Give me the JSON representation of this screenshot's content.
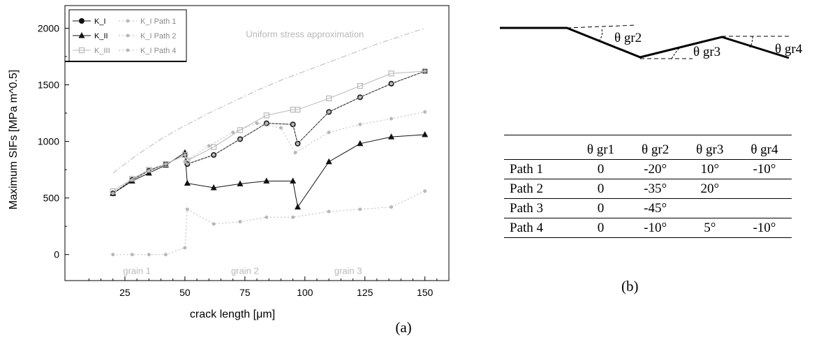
{
  "chart_data": {
    "type": "line",
    "panel_label": "(a)",
    "title": "",
    "xlabel": "crack length [μm]",
    "ylabel": "Maximum SIFs [MPa m^0.5]",
    "xlim": [
      0,
      160
    ],
    "ylim": [
      -230,
      2200
    ],
    "x_ticks": [
      25,
      50,
      75,
      100,
      125,
      150
    ],
    "y_ticks": [
      0,
      500,
      1000,
      1500,
      2000
    ],
    "legend_position": "top-left",
    "grid": false,
    "colors": {
      "dark": "#111111",
      "light": "#b8b8b8"
    },
    "series": [
      {
        "name": "K_I",
        "style": "circle",
        "shade": "dark",
        "x": [
          20,
          28,
          35,
          42,
          50,
          51,
          62,
          73,
          84,
          95,
          97,
          110,
          123,
          136,
          150
        ],
        "y": [
          540,
          660,
          740,
          800,
          880,
          800,
          880,
          1020,
          1160,
          1150,
          980,
          1260,
          1390,
          1510,
          1620
        ]
      },
      {
        "name": "K_II",
        "style": "triangle",
        "shade": "dark",
        "x": [
          20,
          28,
          35,
          42,
          50,
          51,
          62,
          73,
          84,
          95,
          97,
          110,
          123,
          136,
          150
        ],
        "y": [
          540,
          650,
          720,
          790,
          900,
          630,
          590,
          625,
          650,
          650,
          420,
          820,
          980,
          1040,
          1060
        ]
      },
      {
        "name": "K_III",
        "style": "star",
        "shade": "light",
        "x": [
          20,
          28,
          35,
          42,
          50,
          51,
          62,
          73,
          84,
          95,
          97,
          110,
          123,
          136,
          150
        ],
        "y": [
          560,
          670,
          750,
          800,
          880,
          830,
          950,
          1100,
          1230,
          1280,
          1280,
          1380,
          1490,
          1600,
          1620
        ]
      },
      {
        "name": "K_I Path 1",
        "style": "dot",
        "shade": "light",
        "x": [
          20,
          28,
          35,
          42,
          50,
          51,
          62,
          73,
          84,
          95,
          97,
          110,
          123,
          136,
          150
        ],
        "y": [
          540,
          660,
          740,
          800,
          880,
          800,
          880,
          1020,
          1160,
          1150,
          980,
          1260,
          1390,
          1510,
          1620
        ]
      },
      {
        "name": "K_I Path 2",
        "style": "dot",
        "shade": "light",
        "x": [
          50,
          60,
          70,
          80,
          90,
          96,
          110,
          123,
          136,
          150
        ],
        "y": [
          820,
          960,
          1080,
          1160,
          1120,
          900,
          1080,
          1150,
          1200,
          1260
        ]
      },
      {
        "name": "K_I Path 4",
        "style": "dot",
        "shade": "light",
        "x": [
          20,
          28,
          35,
          42,
          50,
          51,
          62,
          73,
          84,
          95,
          110,
          123,
          136,
          150
        ],
        "y": [
          0,
          0,
          0,
          0,
          60,
          400,
          270,
          290,
          330,
          330,
          380,
          400,
          420,
          560
        ]
      },
      {
        "name": "Uniform stress approximation",
        "style": "dashdot",
        "shade": "light",
        "x": [
          20,
          30,
          40,
          50,
          60,
          70,
          80,
          90,
          100,
          110,
          120,
          130,
          140,
          150
        ],
        "y": [
          720,
          880,
          1020,
          1140,
          1250,
          1350,
          1450,
          1540,
          1620,
          1700,
          1780,
          1860,
          1930,
          2000
        ]
      }
    ],
    "annotations": [
      {
        "text": "Uniform stress approximation",
        "x": 100,
        "y": 1920
      },
      {
        "text": "grain 1",
        "x": 30,
        "y": -170
      },
      {
        "text": "grain 2",
        "x": 75,
        "y": -170
      },
      {
        "text": "grain 3",
        "x": 118,
        "y": -170
      }
    ]
  },
  "panel_b": {
    "label": "(b)",
    "diagram_labels": [
      "θ gr2",
      "θ gr3",
      "θ gr4"
    ],
    "table": {
      "headers": [
        "",
        "θ gr1",
        "θ gr2",
        "θ gr3",
        "θ gr4"
      ],
      "rows": [
        [
          "Path 1",
          "0",
          "-20°",
          "10°",
          "-10°"
        ],
        [
          "Path 2",
          "0",
          "-35°",
          "20°",
          ""
        ],
        [
          "Path 3",
          "0",
          "-45°",
          "",
          ""
        ],
        [
          "Path 4",
          "0",
          "-10°",
          "5°",
          "-10°"
        ]
      ]
    }
  }
}
